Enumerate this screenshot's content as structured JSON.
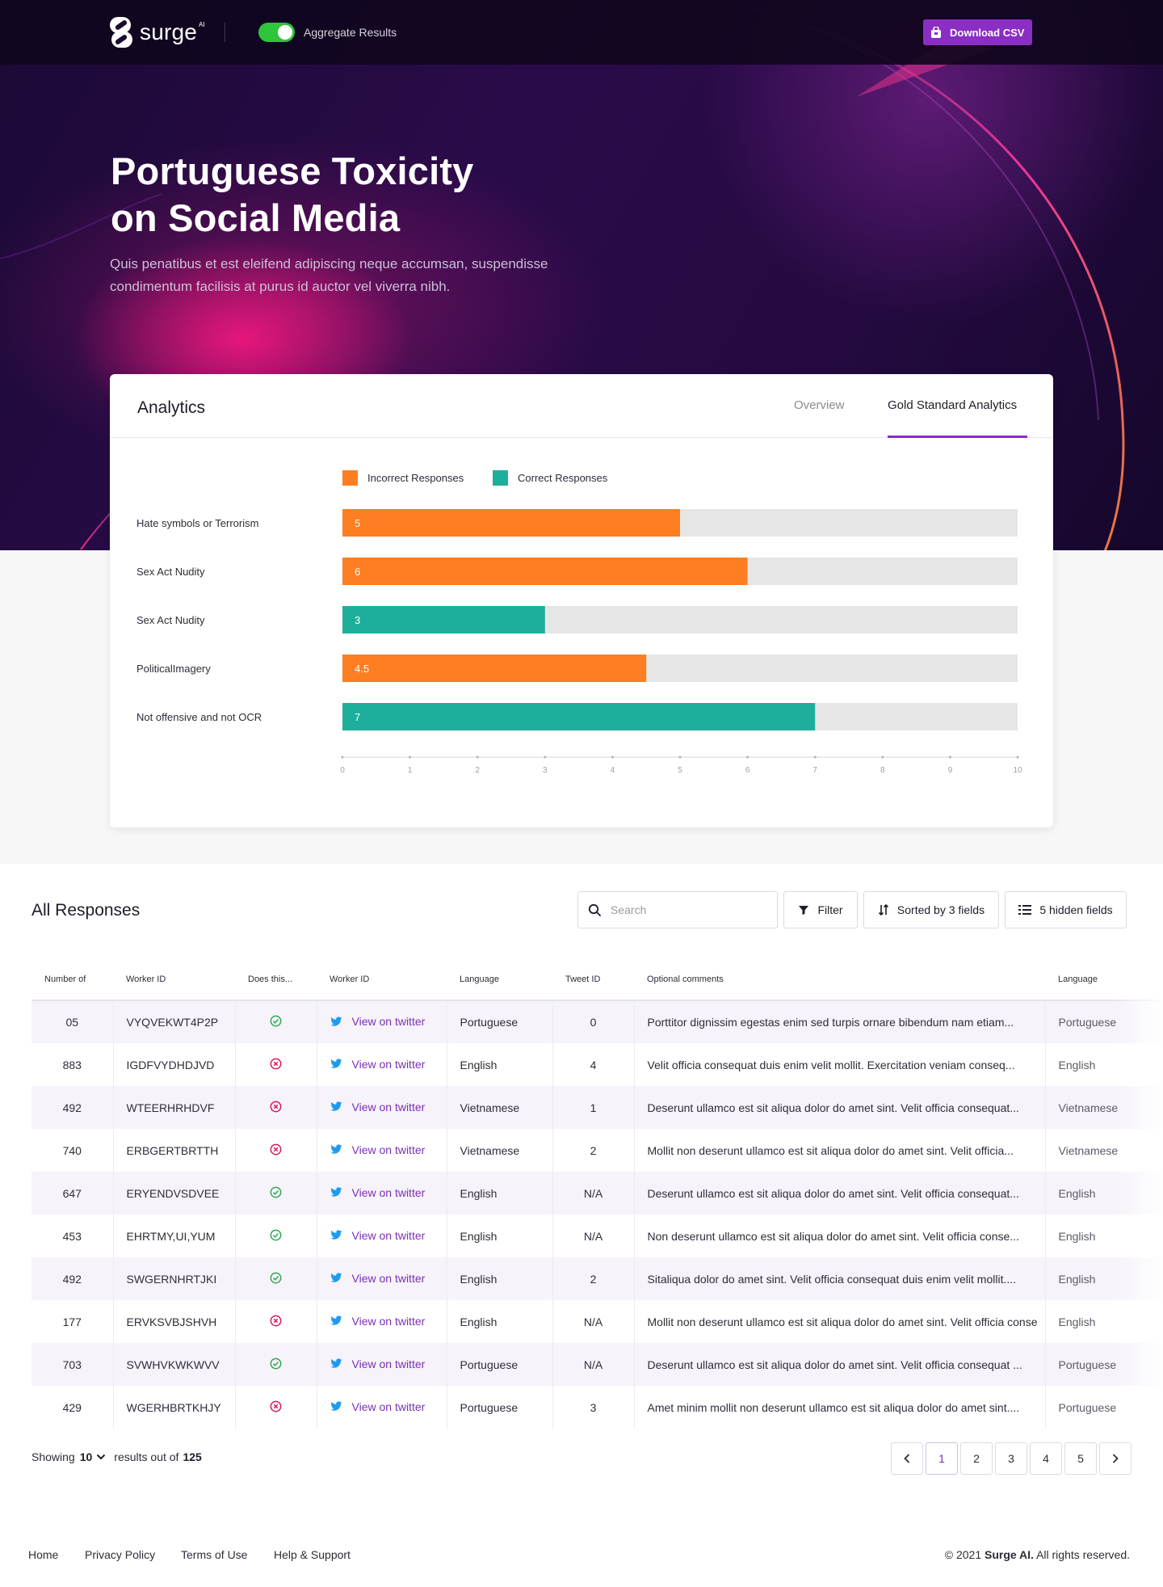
{
  "topbar": {
    "logo_text": "surge",
    "logo_sup": "AI",
    "toggle_label": "Aggregate Results",
    "toggle_on": true,
    "download_label": "Download CSV"
  },
  "hero": {
    "title_line1": "Portuguese Toxicity",
    "title_line2": "on Social Media",
    "subtitle_line1": "Quis penatibus et est eleifend adipiscing neque accumsan, suspendisse",
    "subtitle_line2": "condimentum facilisis at purus id auctor vel viverra nibh."
  },
  "analytics": {
    "title": "Analytics",
    "tabs": [
      {
        "label": "Overview",
        "active": false
      },
      {
        "label": "Gold Standard Analytics",
        "active": true
      }
    ],
    "colors": {
      "incorrect": "#fd7f21",
      "correct": "#1eaf9c",
      "track": "#e6e6e6",
      "accent": "#8a2ec4"
    }
  },
  "chart_data": {
    "type": "bar",
    "orientation": "horizontal",
    "categories": [
      "Hate symbols or Terrorism",
      "Sex Act Nudity",
      "Sex Act Nudity",
      "PoliticalImagery",
      "Not offensive and not OCR"
    ],
    "values": [
      5,
      6,
      3,
      4.5,
      7
    ],
    "series_of_bar": [
      "Incorrect Responses",
      "Incorrect Responses",
      "Correct Responses",
      "Incorrect Responses",
      "Correct Responses"
    ],
    "legend": [
      "Incorrect Responses",
      "Correct Responses"
    ],
    "legend_position": "top",
    "xlim": [
      0,
      10
    ],
    "xticks": [
      "0",
      "1",
      "2",
      "3",
      "4",
      "5",
      "6",
      "7",
      "8",
      "9",
      "10"
    ],
    "value_labels": [
      "5",
      "6",
      "3",
      "4.5",
      "7"
    ]
  },
  "responses": {
    "title": "All Responses",
    "search_placeholder": "Search",
    "filter_label": "Filter",
    "sort_label": "Sorted by 3 fields",
    "hidden_label": "5 hidden fields",
    "columns": [
      "Number of",
      "Worker ID",
      "Does this...",
      "Worker ID",
      "Language",
      "Tweet ID",
      "Optional comments",
      "Language"
    ],
    "link_label": "View on twitter",
    "rows": [
      {
        "number": "05",
        "worker_id": "VYQVEKWT4P2P",
        "status": "ok",
        "language": "Portuguese",
        "tweet_id": "0",
        "comment": "Porttitor dignissim egestas enim sed turpis ornare bibendum nam etiam...",
        "language2": "Portuguese"
      },
      {
        "number": "883",
        "worker_id": "IGDFVYDHDJVD",
        "status": "bad",
        "language": "English",
        "tweet_id": "4",
        "comment": "Velit officia consequat duis enim velit mollit. Exercitation veniam conseq...",
        "language2": "English"
      },
      {
        "number": "492",
        "worker_id": "WTEERHRHDVF",
        "status": "bad",
        "language": "Vietnamese",
        "tweet_id": "1",
        "comment": "Deserunt ullamco est sit aliqua dolor do amet sint. Velit officia consequat...",
        "language2": "Vietnamese"
      },
      {
        "number": "740",
        "worker_id": "ERBGERTBRTTH",
        "status": "bad",
        "language": "Vietnamese",
        "tweet_id": "2",
        "comment": "Mollit non deserunt ullamco est sit aliqua dolor do amet sint. Velit officia...",
        "language2": "Vietnamese"
      },
      {
        "number": "647",
        "worker_id": "ERYENDVSDVEE",
        "status": "ok",
        "language": "English",
        "tweet_id": "N/A",
        "comment": "Deserunt ullamco est sit aliqua dolor do amet sint. Velit officia consequat...",
        "language2": "English"
      },
      {
        "number": "453",
        "worker_id": "EHRTMY,UI,YUM",
        "status": "ok",
        "language": "English",
        "tweet_id": "N/A",
        "comment": "Non deserunt ullamco est sit aliqua dolor do amet sint. Velit officia conse...",
        "language2": "English"
      },
      {
        "number": "492",
        "worker_id": "SWGERNHRTJKI",
        "status": "ok",
        "language": "English",
        "tweet_id": "2",
        "comment": "Sitaliqua dolor do amet sint. Velit officia consequat duis enim velit mollit....",
        "language2": "English"
      },
      {
        "number": "177",
        "worker_id": "ERVKSVBJSHVH",
        "status": "bad",
        "language": "English",
        "tweet_id": "N/A",
        "comment": "Mollit non deserunt ullamco est sit aliqua dolor do amet sint. Velit officia conse",
        "language2": "English"
      },
      {
        "number": "703",
        "worker_id": "SVWHVKWKWVV",
        "status": "ok",
        "language": "Portuguese",
        "tweet_id": "N/A",
        "comment": "Deserunt ullamco est sit aliqua dolor do amet sint. Velit officia consequat ...",
        "language2": "Portuguese"
      },
      {
        "number": "429",
        "worker_id": "WGERHBRTKHJY",
        "status": "bad",
        "language": "Portuguese",
        "tweet_id": "3",
        "comment": "Amet minim mollit non deserunt ullamco est sit aliqua dolor do amet sint....",
        "language2": "Portuguese"
      }
    ],
    "status_colors": {
      "ok": "#2fa84f",
      "bad": "#d3195b"
    },
    "showing_prefix": "Showing",
    "page_size": "10",
    "results_mid": "results out of",
    "total": "125",
    "pages": [
      "1",
      "2",
      "3",
      "4",
      "5"
    ],
    "current_page": "1"
  },
  "footer": {
    "links": [
      "Home",
      "Privacy Policy",
      "Terms of Use",
      "Help & Support"
    ],
    "copyright_prefix": "© 2021",
    "copyright_brand": "Surge AI.",
    "copyright_suffix": "All rights reserved."
  }
}
